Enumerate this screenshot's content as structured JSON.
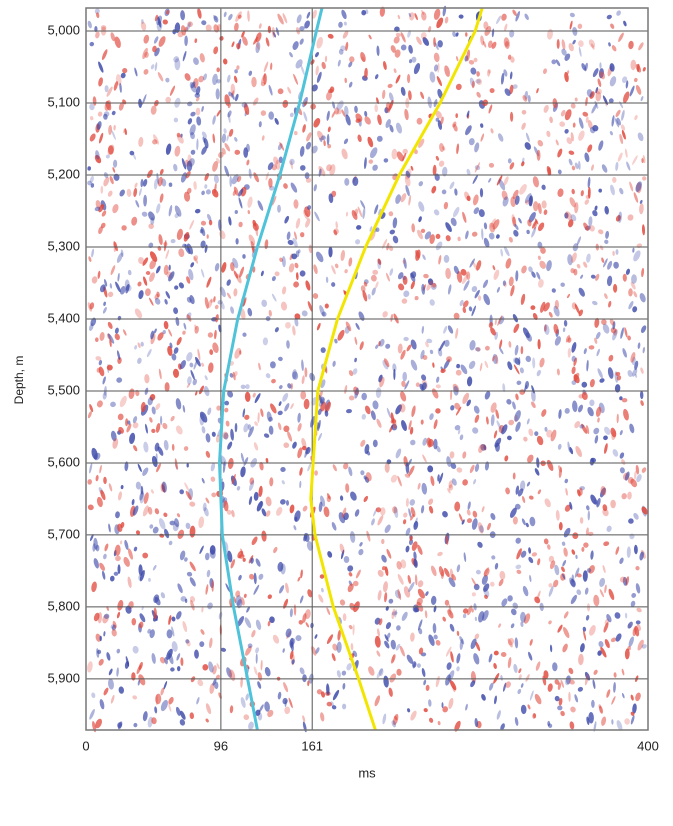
{
  "chart_data": {
    "type": "line",
    "xlabel": "ms",
    "ylabel": "Depth, m",
    "xlim": [
      0,
      400
    ],
    "xticks": [
      0,
      96,
      161,
      400
    ],
    "ylim": [
      5971,
      4968
    ],
    "yticks": [
      {
        "value": 5000,
        "label": "5,000"
      },
      {
        "value": 5100,
        "label": "5,100"
      },
      {
        "value": 5200,
        "label": "5,200"
      },
      {
        "value": 5300,
        "label": "5,300"
      },
      {
        "value": 5400,
        "label": "5,400"
      },
      {
        "value": 5500,
        "label": "5,500"
      },
      {
        "value": 5600,
        "label": "5,600"
      },
      {
        "value": 5700,
        "label": "5,700"
      },
      {
        "value": 5800,
        "label": "5,800"
      },
      {
        "value": 5900,
        "label": "5,900"
      }
    ],
    "grid": true,
    "series": [
      {
        "color": "#4fc3d9",
        "x": [
          168,
          164,
          152,
          138,
          122,
          108,
          98,
          95,
          97,
          105,
          115,
          122
        ],
        "values": [
          4968,
          5000,
          5100,
          5200,
          5300,
          5400,
          5500,
          5600,
          5700,
          5800,
          5900,
          5971
        ]
      },
      {
        "color": "#f2e600",
        "x": [
          282,
          277,
          252,
          223,
          199,
          179,
          165,
          160,
          163,
          176,
          194,
          206
        ],
        "values": [
          4968,
          5000,
          5100,
          5200,
          5300,
          5400,
          5500,
          5650,
          5700,
          5800,
          5900,
          5971
        ]
      }
    ]
  }
}
